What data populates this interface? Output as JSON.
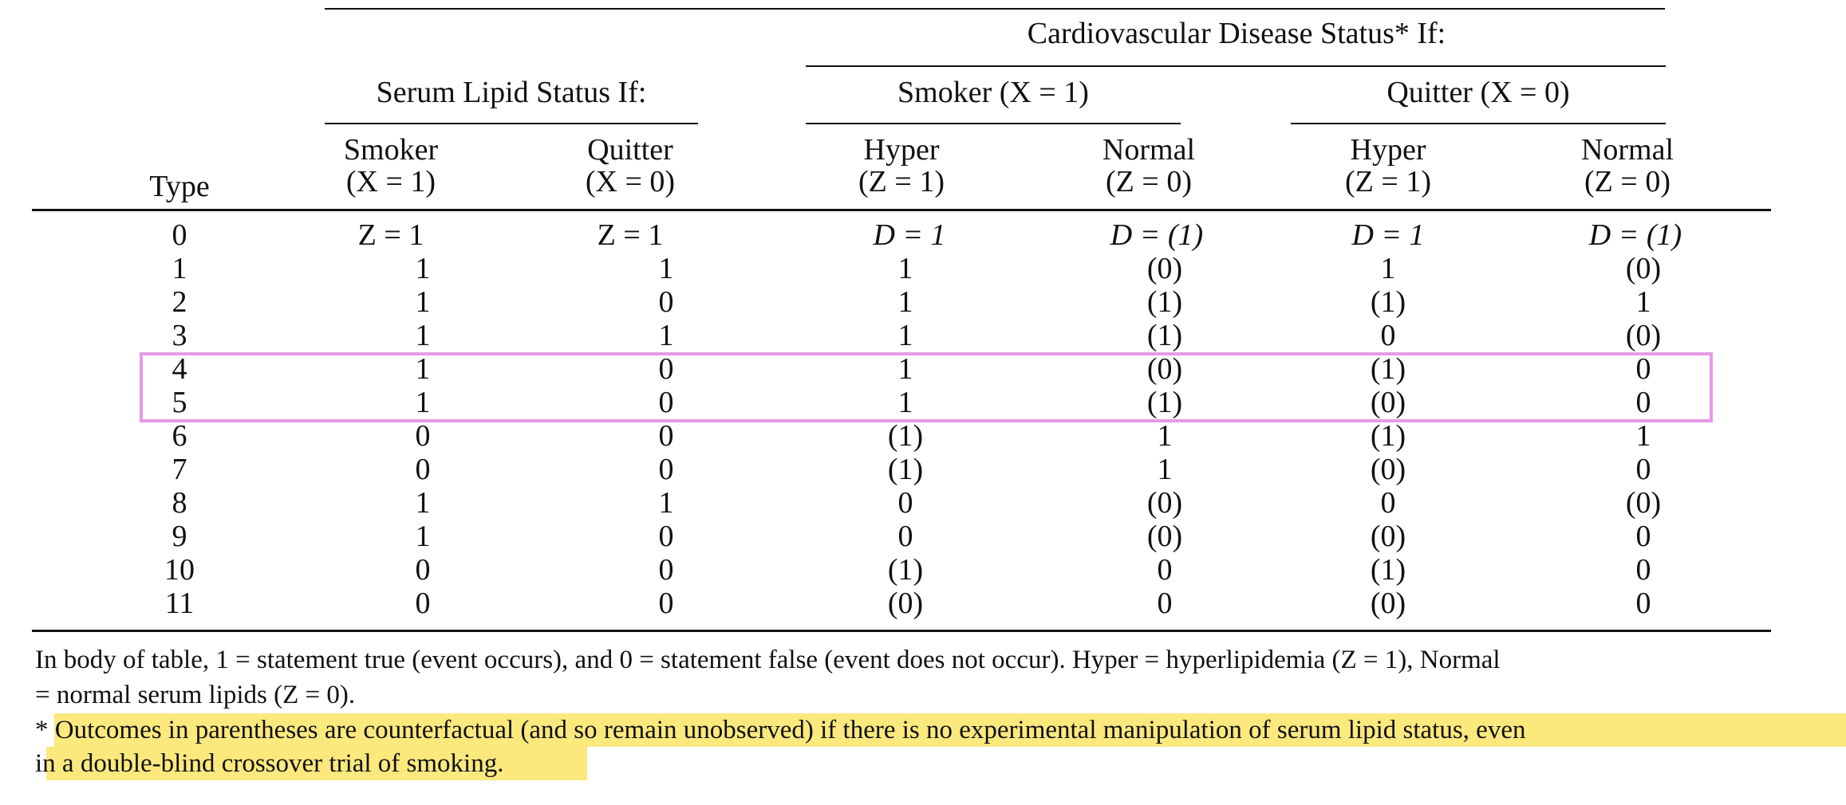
{
  "headers": {
    "cvd_group": "Cardiovascular Disease Status* If:",
    "lipid_group": "Serum Lipid Status If:",
    "smoker_group": "Smoker (X = 1)",
    "quitter_group": "Quitter (X = 0)",
    "type": "Type",
    "sub_smoker": [
      "Smoker",
      "(X = 1)"
    ],
    "sub_quitter": [
      "Quitter",
      "(X = 0)"
    ],
    "sub_hyper": [
      "Hyper",
      "(Z = 1)"
    ],
    "sub_normal": [
      "Normal",
      "(Z = 0)"
    ]
  },
  "rows": [
    [
      "0",
      "Z = 1",
      "Z = 1",
      "D = 1",
      "D = (1)",
      "D = 1",
      "D = (1)"
    ],
    [
      "1",
      "1",
      "1",
      "1",
      "(0)",
      "1",
      "(0)"
    ],
    [
      "2",
      "1",
      "0",
      "1",
      "(1)",
      "(1)",
      "1"
    ],
    [
      "3",
      "1",
      "1",
      "1",
      "(1)",
      "0",
      "(0)"
    ],
    [
      "4",
      "1",
      "0",
      "1",
      "(0)",
      "(1)",
      "0"
    ],
    [
      "5",
      "1",
      "0",
      "1",
      "(1)",
      "(0)",
      "0"
    ],
    [
      "6",
      "0",
      "0",
      "(1)",
      "1",
      "(1)",
      "1"
    ],
    [
      "7",
      "0",
      "0",
      "(1)",
      "1",
      "(0)",
      "0"
    ],
    [
      "8",
      "1",
      "1",
      "0",
      "(0)",
      "0",
      "(0)"
    ],
    [
      "9",
      "1",
      "0",
      "0",
      "(0)",
      "(0)",
      "0"
    ],
    [
      "10",
      "0",
      "0",
      "(1)",
      "0",
      "(1)",
      "0"
    ],
    [
      "11",
      "0",
      "0",
      "(0)",
      "0",
      "(0)",
      "0"
    ]
  ],
  "footnotes": {
    "line1": "In body of table, 1 = statement true (event occurs), and 0 = statement false (event does not occur). Hyper = hyperlipidemia (Z = 1), Normal",
    "line2": "= normal serum lipids (Z = 0).",
    "line3": "* Outcomes in parentheses are counterfactual (and so remain unobserved) if there is no experimental manipulation of serum lipid status, even",
    "line4": "in a double-blind crossover trial of smoking."
  },
  "colors": {
    "highlight_box": "#e69ae6",
    "text_highlight": "#fbe97e"
  },
  "highlighted_rows": [
    "4",
    "5"
  ]
}
